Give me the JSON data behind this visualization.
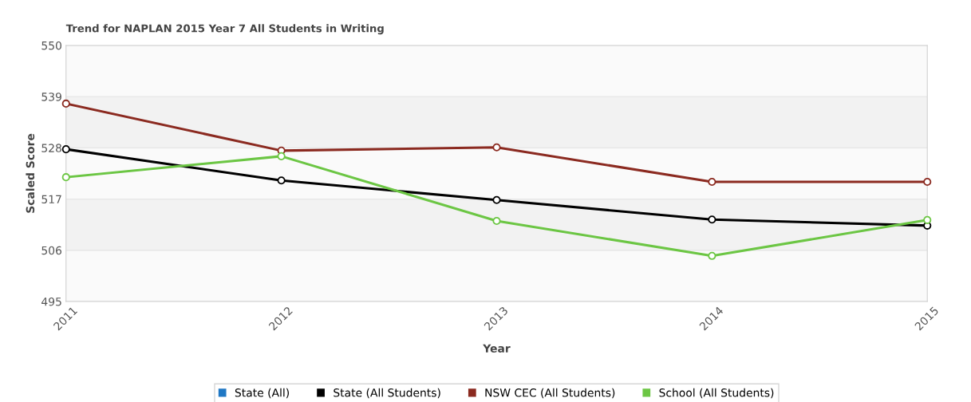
{
  "chart_data": {
    "type": "line",
    "title": "Trend for NAPLAN 2015 Year 7 All Students in Writing",
    "xlabel": "Year",
    "ylabel": "Scaled Score",
    "categories": [
      "2011",
      "2012",
      "2013",
      "2014",
      "2015"
    ],
    "series": [
      {
        "name": "State (All)",
        "color": "#1f77c4",
        "values": [
          null,
          null,
          null,
          null,
          null
        ]
      },
      {
        "name": "State (All Students)",
        "color": "#000000",
        "values": [
          527.7,
          521.0,
          516.8,
          512.6,
          511.3
        ]
      },
      {
        "name": "NSW CEC (All Students)",
        "color": "#8b2a20",
        "values": [
          537.5,
          527.4,
          528.1,
          520.7,
          520.7
        ]
      },
      {
        "name": "School (All Students)",
        "color": "#6cc644",
        "values": [
          521.7,
          526.2,
          512.3,
          504.8,
          512.5
        ]
      }
    ],
    "ylim": [
      495,
      550
    ],
    "yticks": [
      495,
      506,
      517,
      528,
      539,
      550
    ],
    "bands": [
      {
        "axis": "y",
        "from": 528,
        "to": 539,
        "color": "#f2f2f2"
      },
      {
        "axis": "y",
        "from": 506,
        "to": 517,
        "color": "#f2f2f2"
      }
    ],
    "grid": "y",
    "legend": "bottom",
    "marker": "circle",
    "line_style": "solid"
  }
}
